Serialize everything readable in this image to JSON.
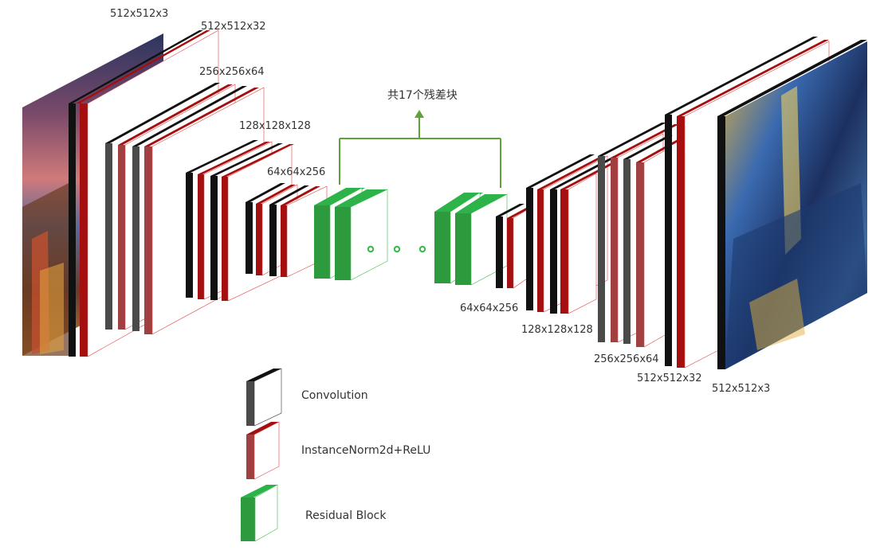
{
  "colors": {
    "conv": "#2b2b2b",
    "conv_light": "#4a4a4a",
    "norm": "#a50f0f",
    "norm_light": "#a04040",
    "residual": "#2e9a3e",
    "residual_top": "#2db34a",
    "edge": "#e04040",
    "arrow": "#5ea33a",
    "dots": "#33bb44"
  },
  "labels": {
    "enc_input": "512x512x3",
    "enc_32": "512x512x32",
    "enc_64": "256x256x64",
    "enc_128": "128x128x128",
    "enc_256": "64x64x256",
    "res_title": "共17个残差块",
    "dec_256": "64x64x256",
    "dec_128": "128x128x128",
    "dec_64": "256x256x64",
    "dec_32": "512x512x32",
    "dec_output": "512x512x3"
  },
  "legend": [
    {
      "id": "conv",
      "label": "Convolution"
    },
    {
      "id": "norm",
      "label": "InstanceNorm2d+ReLU"
    },
    {
      "id": "residual",
      "label": "Residual Block"
    }
  ],
  "images": {
    "input": "input-photo",
    "output": "stylized-output"
  }
}
